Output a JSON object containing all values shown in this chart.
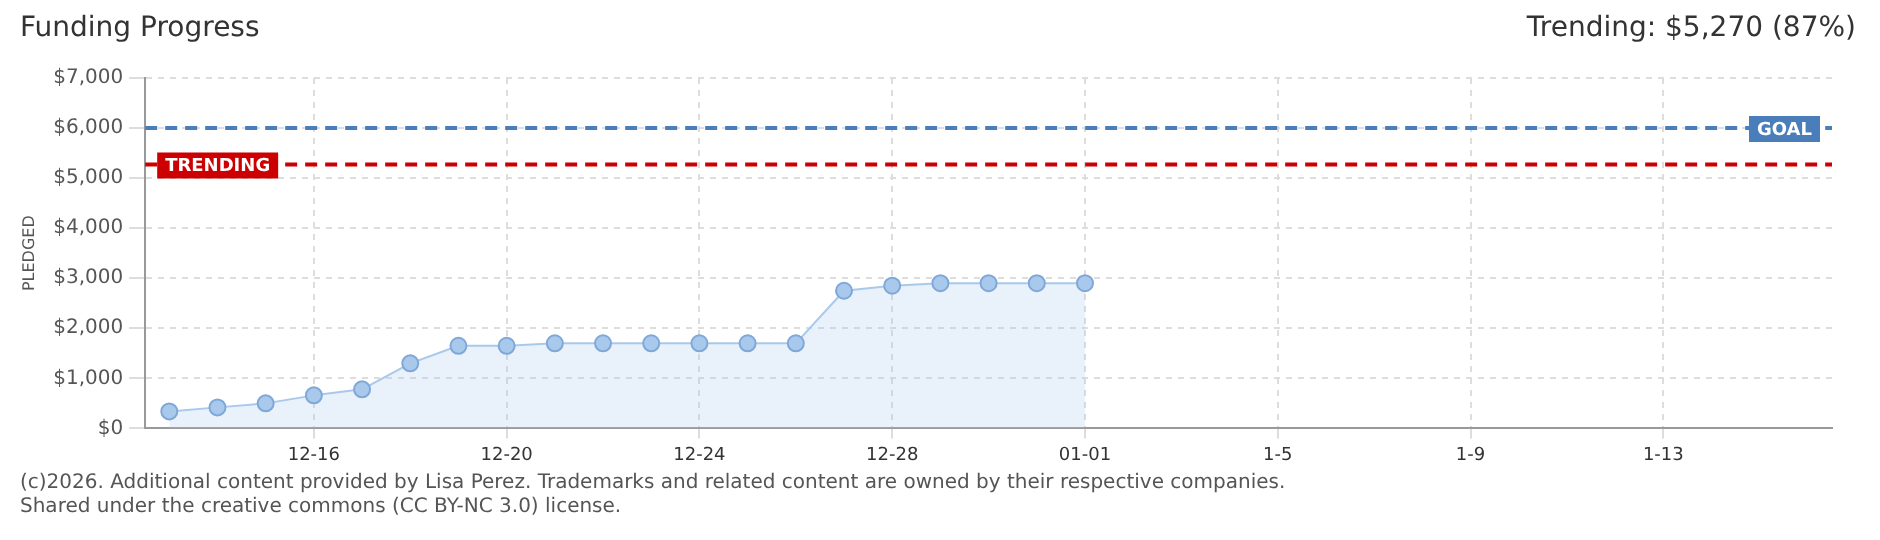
{
  "chart_data": {
    "type": "area",
    "title": "Funding Progress",
    "subtitle": "Trending: $5,270 (87%)",
    "ylabel": "PLEDGED",
    "categories": [
      null,
      null,
      null,
      "12-16",
      null,
      null,
      null,
      "12-20",
      null,
      null,
      null,
      "12-24",
      null,
      null,
      null,
      "12-28",
      null,
      null,
      null,
      "01-01",
      null,
      null,
      null,
      "1-5",
      null,
      null,
      null,
      "1-9",
      null,
      null,
      null,
      "1-13",
      null,
      null,
      null
    ],
    "series": [
      {
        "color": "#a9c9ec",
        "values": [
          340,
          420,
          500,
          660,
          780,
          1300,
          1650,
          1650,
          1700,
          1700,
          1700,
          1700,
          1700,
          1700,
          2750,
          2850,
          2900,
          2900,
          2900,
          2900,
          null,
          null,
          null,
          null,
          null,
          null,
          null,
          null,
          null,
          null,
          null,
          null,
          null,
          null,
          null
        ]
      }
    ],
    "ylim": [
      0,
      7000
    ],
    "yticks": [
      {
        "value": 0,
        "label": "$0"
      },
      {
        "value": 1000,
        "label": "$1,000"
      },
      {
        "value": 2000,
        "label": "$2,000"
      },
      {
        "value": 3000,
        "label": "$3,000"
      },
      {
        "value": 4000,
        "label": "$4,000"
      },
      {
        "value": 5000,
        "label": "$5,000"
      },
      {
        "value": 6000,
        "label": "$6,000"
      },
      {
        "value": 7000,
        "label": "$7,000"
      }
    ],
    "grid": true,
    "marker": "circle",
    "line_style": "solid",
    "ref_lines": [
      {
        "axis": "y",
        "value": 6000,
        "label": "GOAL",
        "color": "#4a7ebb",
        "line_style": "dashed"
      },
      {
        "axis": "y",
        "value": 5270,
        "label": "TRENDING",
        "color": "#cc0000",
        "line_style": "dashed"
      }
    ],
    "annotations": [
      "(c)2026. Additional content provided by Lisa Perez. Trademarks and related content are owned by their respective companies.",
      "Shared under the creative commons (CC BY-NC 3.0) license."
    ]
  }
}
